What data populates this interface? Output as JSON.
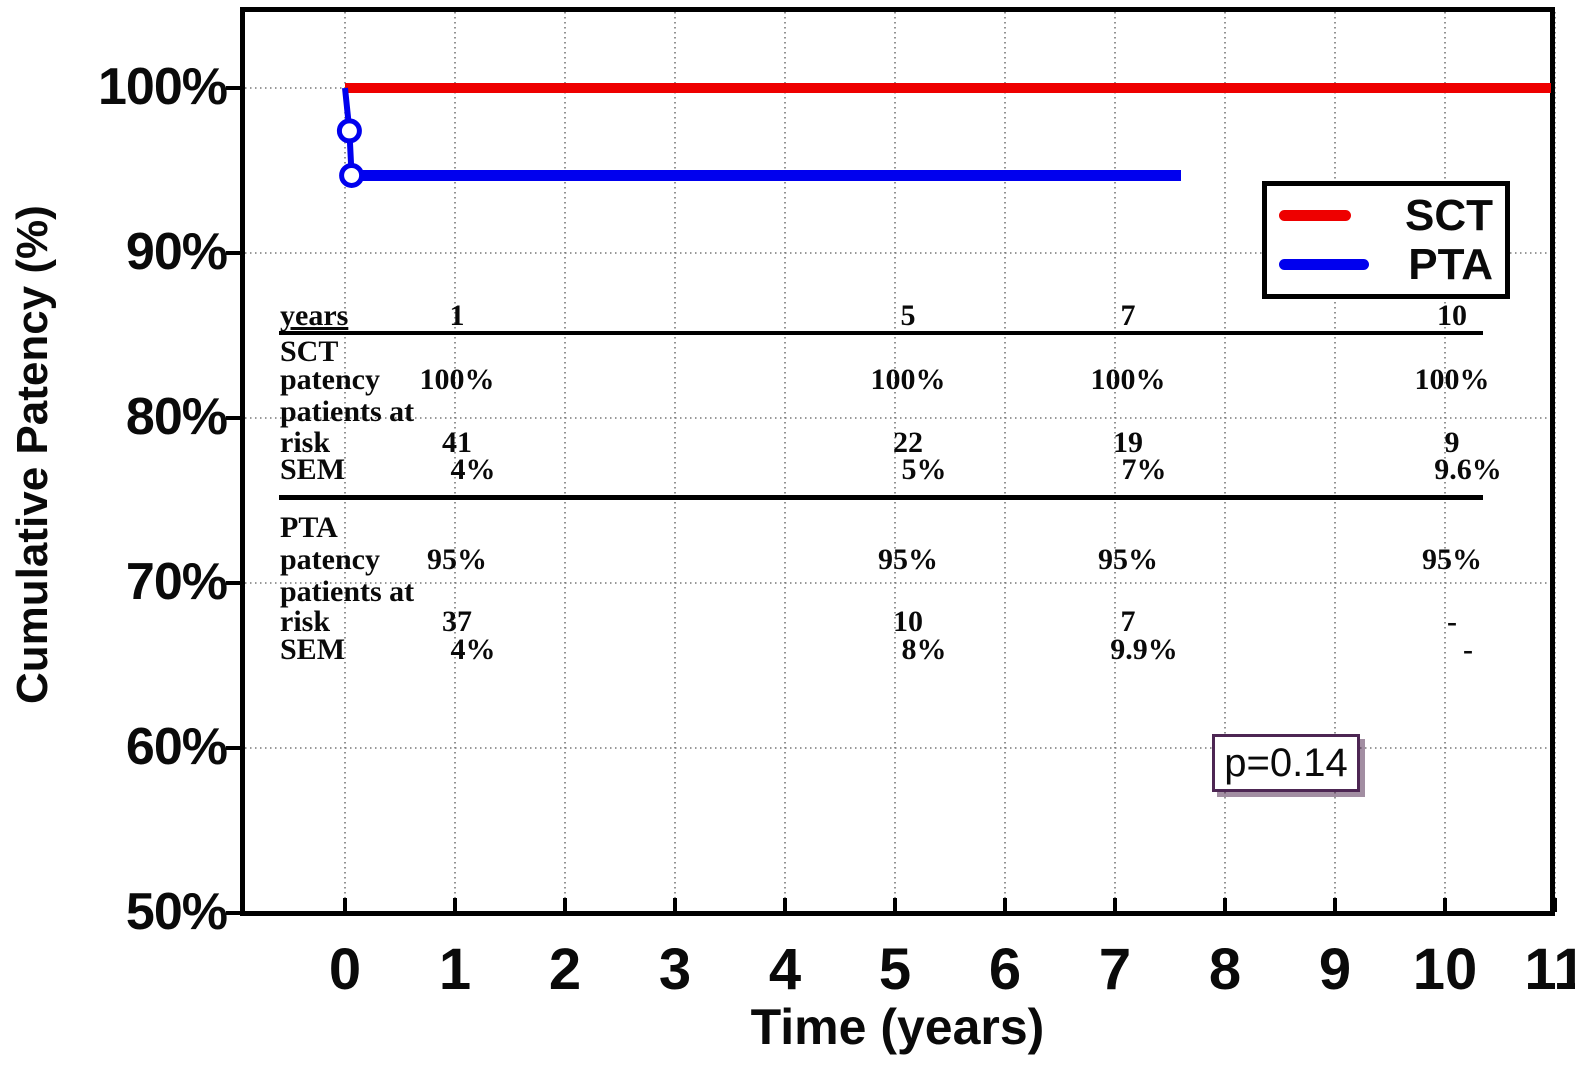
{
  "chart_data": {
    "type": "line",
    "subtype": "kaplan-meier-step",
    "title": "",
    "xlabel": "Time (years)",
    "ylabel": "Cumulative Patency (%)",
    "xlim": [
      0,
      11
    ],
    "ylim": [
      50,
      105
    ],
    "x_ticks": [
      0,
      1,
      2,
      3,
      4,
      5,
      6,
      7,
      8,
      9,
      10,
      11
    ],
    "y_ticks": [
      {
        "value": 100,
        "label": "100%"
      },
      {
        "value": 90,
        "label": "90%"
      },
      {
        "value": 80,
        "label": "80%"
      },
      {
        "value": 70,
        "label": "70%"
      },
      {
        "value": 60,
        "label": "60%"
      },
      {
        "value": 50,
        "label": "50%"
      }
    ],
    "y_gridlines": [
      100,
      90,
      80,
      70,
      60
    ],
    "grid_style": "dotted",
    "legend_position": "upper-right",
    "annotation": {
      "text": "p=0.14"
    },
    "series": [
      {
        "name": "SCT",
        "color": "#ee0000",
        "points": [
          [
            0,
            100
          ],
          [
            11,
            100
          ]
        ]
      },
      {
        "name": "PTA",
        "color": "#0000ee",
        "points": [
          [
            0,
            100
          ],
          [
            0.04,
            97.4
          ],
          [
            0.06,
            94.7
          ],
          [
            7.6,
            94.7
          ]
        ],
        "censor_markers": [
          [
            0.04,
            97.4
          ],
          [
            0.06,
            94.7
          ]
        ]
      }
    ],
    "table": {
      "years_label": "years",
      "columns": [
        "1",
        "5",
        "7",
        "10"
      ],
      "groups": [
        {
          "name": "SCT",
          "patency_label": "patency",
          "patency": [
            "100%",
            "100%",
            "100%",
            "100%"
          ],
          "risk_label": [
            "patients at",
            "risk"
          ],
          "risk": [
            "41",
            "22",
            "19",
            "9"
          ],
          "sem_label": "SEM",
          "sem": [
            "4%",
            "5%",
            "7%",
            "9.6%"
          ]
        },
        {
          "name": "PTA",
          "patency_label": "patency",
          "patency": [
            "95%",
            "95%",
            "95%",
            "95%"
          ],
          "risk_label": [
            "patients at",
            "risk"
          ],
          "risk": [
            "37",
            "10",
            "7",
            "-"
          ],
          "sem_label": "SEM",
          "sem": [
            "4%",
            "8%",
            "9.9%",
            "-"
          ]
        }
      ]
    },
    "legend": [
      {
        "label": "SCT",
        "color": "#ee0000"
      },
      {
        "label": "PTA",
        "color": "#0000ee"
      }
    ]
  }
}
